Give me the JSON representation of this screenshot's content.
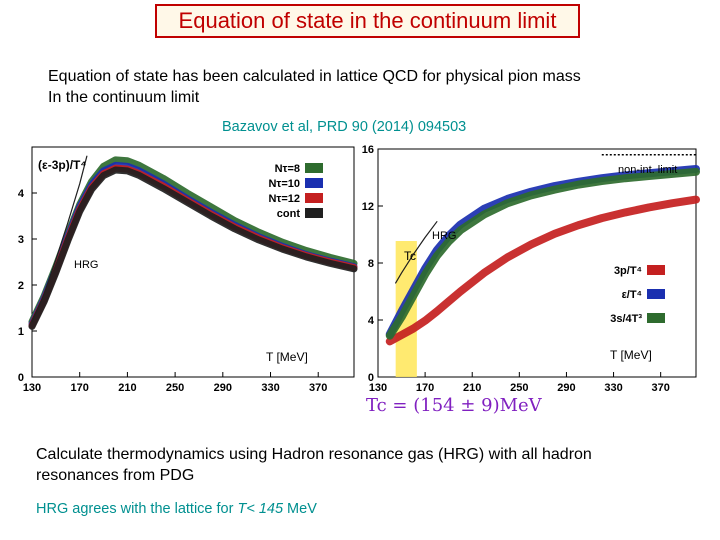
{
  "slide": {
    "title": "Equation of state in the continuum limit",
    "intro_line1": "Equation of state has been calculated in lattice QCD for physical pion mass",
    "intro_line2": "In the continuum limit",
    "citation": "Bazavov et al, PRD 90 (2014) 094503",
    "tc_formula": "Tc = (154 ± 9)MeV",
    "calc_line1": "Calculate thermodynamics using Hadron resonance gas (HRG) with all hadron",
    "calc_line2": "resonances from PDG",
    "agree_prefix": "HRG agrees with the lattice  for ",
    "agree_var": "T< 145",
    "agree_unit": " MeV"
  },
  "colors": {
    "title": "#c00000",
    "citation": "#009090",
    "formula": "#8020c0",
    "green": "#2e6b2e",
    "blue": "#1a2fb0",
    "red": "#c42020",
    "dark": "#202020",
    "tc_band": "#ffe860"
  },
  "chart_data": [
    {
      "type": "line",
      "title": "(ε-3p)/T⁴",
      "xlabel": "T [MeV]",
      "ylabel": "(ε-3p)/T⁴",
      "xlim": [
        130,
        400
      ],
      "ylim": [
        0,
        5
      ],
      "x_ticks": [
        "130",
        "170",
        "210",
        "250",
        "290",
        "330",
        "370"
      ],
      "y_ticks": [
        "0",
        "1",
        "2",
        "3",
        "4"
      ],
      "hrg_label": "HRG",
      "series": [
        {
          "name": "Nτ=8",
          "label": "Nτ=8",
          "color": "#2e6b2e",
          "x": [
            130,
            140,
            150,
            160,
            170,
            180,
            190,
            200,
            210,
            220,
            240,
            260,
            280,
            300,
            320,
            340,
            360,
            380,
            400
          ],
          "y": [
            1.2,
            1.75,
            2.4,
            3.1,
            3.75,
            4.25,
            4.58,
            4.72,
            4.7,
            4.6,
            4.32,
            4.0,
            3.7,
            3.4,
            3.15,
            2.93,
            2.75,
            2.6,
            2.47
          ]
        },
        {
          "name": "Nτ=10",
          "label": "Nτ=10",
          "color": "#1a2fb0",
          "x": [
            130,
            140,
            150,
            160,
            170,
            180,
            190,
            200,
            210,
            220,
            240,
            260,
            280,
            300,
            320,
            340,
            360,
            380,
            400
          ],
          "y": [
            1.15,
            1.7,
            2.35,
            3.05,
            3.7,
            4.18,
            4.48,
            4.6,
            4.58,
            4.48,
            4.2,
            3.88,
            3.58,
            3.3,
            3.05,
            2.84,
            2.66,
            2.52,
            2.4
          ]
        },
        {
          "name": "Nτ=12",
          "label": "Nτ=12",
          "color": "#c42020",
          "x": [
            130,
            140,
            150,
            160,
            170,
            180,
            190,
            200,
            210,
            220,
            240,
            260,
            280,
            300,
            320,
            340,
            360,
            380,
            400
          ],
          "y": [
            1.12,
            1.66,
            2.3,
            3.0,
            3.64,
            4.12,
            4.42,
            4.54,
            4.52,
            4.42,
            4.15,
            3.84,
            3.54,
            3.26,
            3.02,
            2.81,
            2.64,
            2.5,
            2.38
          ]
        },
        {
          "name": "cont",
          "label": "cont",
          "color": "#202020",
          "x": [
            130,
            140,
            150,
            160,
            170,
            180,
            190,
            200,
            210,
            220,
            240,
            260,
            280,
            300,
            320,
            340,
            360,
            380,
            400
          ],
          "y": [
            1.1,
            1.63,
            2.27,
            2.96,
            3.6,
            4.08,
            4.38,
            4.5,
            4.48,
            4.38,
            4.1,
            3.8,
            3.5,
            3.22,
            2.98,
            2.78,
            2.61,
            2.47,
            2.35
          ]
        },
        {
          "name": "HRG",
          "label": "HRG",
          "color": "#202020",
          "x": [
            130,
            140,
            150,
            160,
            170,
            176
          ],
          "y": [
            1.2,
            1.8,
            2.55,
            3.35,
            4.2,
            4.8
          ]
        }
      ]
    },
    {
      "type": "line",
      "title": "",
      "xlabel": "T [MeV]",
      "ylabel": "",
      "xlim": [
        130,
        400
      ],
      "ylim": [
        0,
        16
      ],
      "x_ticks": [
        "130",
        "170",
        "210",
        "250",
        "290",
        "330",
        "370"
      ],
      "y_ticks": [
        "0",
        "4",
        "8",
        "12",
        "16"
      ],
      "tc_label": "Tc",
      "tc_range": [
        145,
        163
      ],
      "hrg_label": "HRG",
      "noninteracting_label": "non-int. limit",
      "noninteracting_value": 15.6,
      "series": [
        {
          "name": "3p/T⁴",
          "label": "3p/T⁴",
          "color": "#c42020",
          "x": [
            140,
            150,
            160,
            170,
            180,
            190,
            200,
            220,
            240,
            260,
            280,
            300,
            320,
            340,
            360,
            380,
            400
          ],
          "y": [
            2.5,
            2.95,
            3.4,
            3.95,
            4.6,
            5.3,
            6.0,
            7.3,
            8.4,
            9.3,
            10.05,
            10.65,
            11.15,
            11.55,
            11.9,
            12.2,
            12.45
          ]
        },
        {
          "name": "ε/T⁴",
          "label": "ε/T⁴",
          "color": "#1a2fb0",
          "x": [
            140,
            150,
            160,
            170,
            180,
            190,
            200,
            220,
            240,
            260,
            280,
            300,
            320,
            340,
            360,
            380,
            400
          ],
          "y": [
            3.0,
            4.6,
            6.1,
            7.6,
            8.9,
            9.9,
            10.7,
            11.8,
            12.5,
            13.0,
            13.4,
            13.7,
            13.95,
            14.15,
            14.3,
            14.45,
            14.6
          ]
        },
        {
          "name": "3s/4T³",
          "label": "3s/4T³",
          "color": "#2e6b2e",
          "x": [
            140,
            150,
            160,
            170,
            180,
            190,
            200,
            220,
            240,
            260,
            280,
            300,
            320,
            340,
            360,
            380,
            400
          ],
          "y": [
            2.9,
            4.2,
            5.7,
            7.2,
            8.5,
            9.5,
            10.3,
            11.4,
            12.2,
            12.75,
            13.15,
            13.5,
            13.75,
            13.95,
            14.1,
            14.25,
            14.4
          ]
        },
        {
          "name": "HRG",
          "label": "HRG",
          "color": "#202020",
          "x": [
            145,
            150,
            160,
            170,
            180
          ],
          "y": [
            6.6,
            7.3,
            8.6,
            9.8,
            10.9
          ]
        }
      ]
    }
  ]
}
